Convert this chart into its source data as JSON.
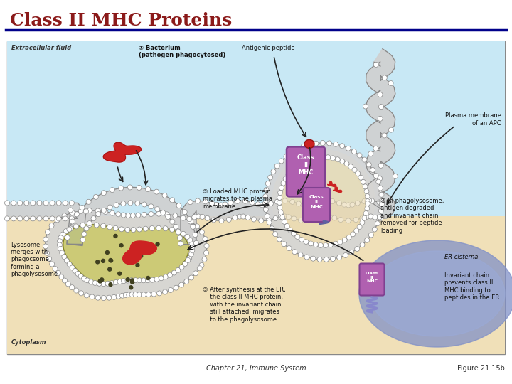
{
  "title": "Class II MHC Proteins",
  "title_color": "#8B1A1A",
  "title_fontsize": 18,
  "footer_left": "Chapter 21, Immune System",
  "footer_right": "Figure 21.15b",
  "footer_fontsize": 7,
  "bg_color": "#FFFFFF",
  "title_underline_color": "#00008B",
  "fluid_color": "#C8E8F5",
  "cytoplasm_color": "#F0E0B8",
  "er_color": "#8090C0",
  "mhc_color": "#B060B0",
  "mhc_color2": "#9050A0",
  "lysosome_color": "#909040",
  "lysosome_light": "#C0C060",
  "bacterium_color": "#CC2222",
  "membrane_color": "#AAAAAA",
  "membrane_fill": "#D8D8D8",
  "text_color": "#111111",
  "annotation_fontsize": 6.0,
  "diagram_border": "#888888",
  "arrow_color": "#222222"
}
